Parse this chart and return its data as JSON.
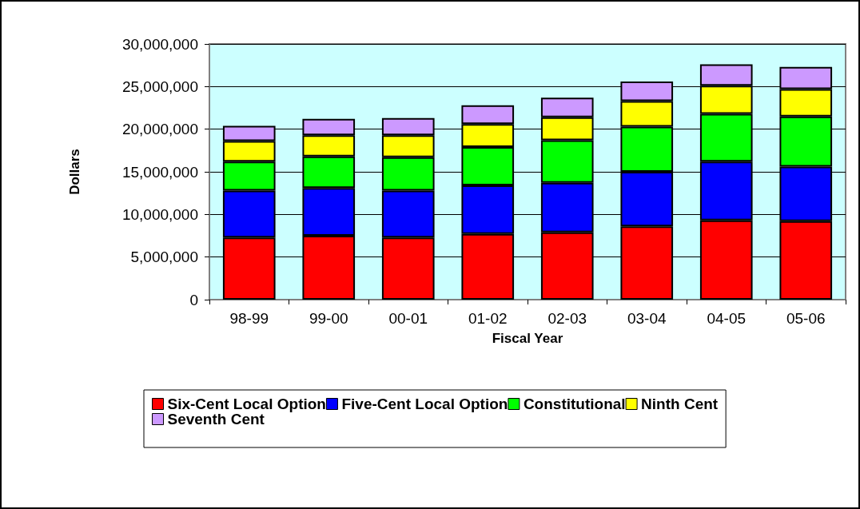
{
  "chart_data": {
    "type": "bar",
    "stacked": true,
    "xlabel": "Fiscal Year",
    "ylabel": "Dollars",
    "categories": [
      "98-99",
      "99-00",
      "00-01",
      "01-02",
      "02-03",
      "03-04",
      "04-05",
      "05-06"
    ],
    "series": [
      {
        "name": "Six-Cent Local Option",
        "color": "#ff0000",
        "values": [
          7300000,
          7500000,
          7300000,
          7700000,
          7900000,
          8600000,
          9300000,
          9200000
        ]
      },
      {
        "name": "Five-Cent Local Option",
        "color": "#0000ff",
        "values": [
          5500000,
          5600000,
          5500000,
          5700000,
          5800000,
          6400000,
          6900000,
          6400000
        ]
      },
      {
        "name": "Constitutional",
        "color": "#00ff00",
        "values": [
          3400000,
          3700000,
          3900000,
          4500000,
          5000000,
          5300000,
          5600000,
          5900000
        ]
      },
      {
        "name": "Ninth Cent",
        "color": "#ffff00",
        "values": [
          2400000,
          2500000,
          2600000,
          2700000,
          2700000,
          3000000,
          3300000,
          3200000
        ]
      },
      {
        "name": "Seventh Cent",
        "color": "#cc99ff",
        "values": [
          1800000,
          1900000,
          2000000,
          2200000,
          2300000,
          2300000,
          2500000,
          2600000
        ]
      }
    ],
    "ylim": [
      0,
      30000000
    ],
    "yticks": [
      0,
      {
        "value": 5000000,
        "label": "5,000,000"
      },
      {
        "value": 10000000,
        "label": "10,000,000"
      },
      {
        "value": 15000000,
        "label": "15,000,000"
      },
      {
        "value": 20000000,
        "label": "20,000,000"
      },
      {
        "value": 25000000,
        "label": "25,000,000"
      },
      {
        "value": 30000000,
        "label": "30,000,000"
      }
    ],
    "grid": "y",
    "legend": "bottom"
  }
}
